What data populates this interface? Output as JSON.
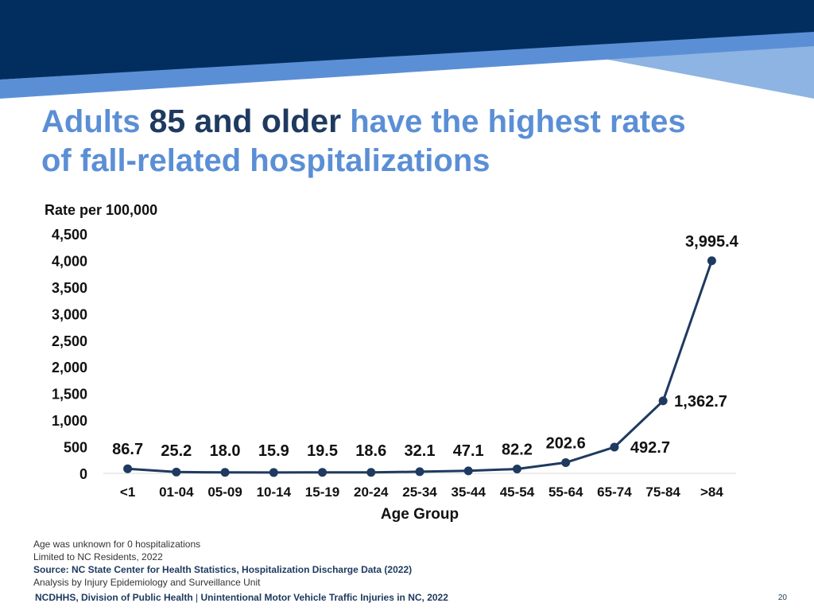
{
  "colors": {
    "banner_dark": "#012e5f",
    "banner_mid": "#5b8fd5",
    "banner_light": "#8db4e2",
    "headline_light": "#5b8fd5",
    "headline_dark": "#1f3a60",
    "series_line": "#1f3a60"
  },
  "headline": {
    "part1": "Adults",
    "part2": "85 and older",
    "part3": "have the highest rates",
    "part4": "of fall-related hospitalizations"
  },
  "chart_data": {
    "type": "line",
    "ylabel": "Rate per 100,000",
    "xlabel": "Age Group",
    "ylim": [
      0,
      4500
    ],
    "yticks": [
      "0",
      "500",
      "1,000",
      "1,500",
      "2,000",
      "2,500",
      "3,000",
      "3,500",
      "4,000",
      "4,500"
    ],
    "grid": false,
    "legend": "none",
    "categories": [
      "<1",
      "01-04",
      "05-09",
      "10-14",
      "15-19",
      "20-24",
      "25-34",
      "35-44",
      "45-54",
      "55-64",
      "65-74",
      "75-84",
      ">84"
    ],
    "values": [
      86.7,
      25.2,
      18.0,
      15.9,
      19.5,
      18.6,
      32.1,
      47.1,
      82.2,
      202.6,
      492.7,
      1362.7,
      3995.4
    ],
    "data_labels": [
      "86.7",
      "25.2",
      "18.0",
      "15.9",
      "19.5",
      "18.6",
      "32.1",
      "47.1",
      "82.2",
      "202.6",
      "492.7",
      "1,362.7",
      "3,995.4"
    ]
  },
  "footnotes": {
    "line1": "Age was unknown for 0 hospitalizations",
    "line2": "Limited to NC Residents, 2022",
    "line3": "Source: NC State Center for Health Statistics, Hospitalization Discharge Data (2022)",
    "line4": "Analysis by Injury Epidemiology and Surveillance Unit"
  },
  "footer": {
    "org": "NCDHHS, Division of Public Health",
    "separator": "|",
    "title": "Unintentional Motor Vehicle Traffic Injuries in NC, 2022",
    "page": "20"
  }
}
